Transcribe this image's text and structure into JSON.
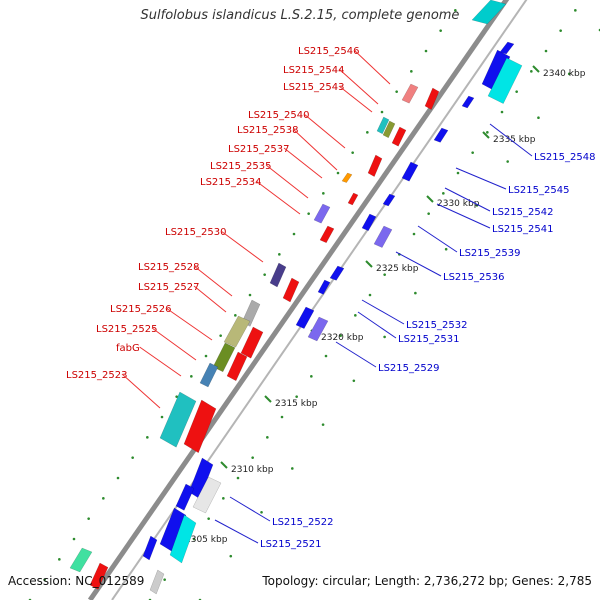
{
  "title": "Sulfolobus islandicus L.S.2.15, complete genome",
  "footer": {
    "accession": "Accession: NC_012589",
    "summary": "Topology: circular; Length: 2,736,272 bp; Genes: 2,785"
  },
  "colors": {
    "backbone": "#8c8c8c",
    "tick": "#2e8b2e",
    "forward_label": "#cc0000",
    "reverse_label": "#0000cc",
    "label_line_forward": "#ee3333",
    "label_line_reverse": "#2222cc"
  },
  "scale_labels": [
    "2340 kbp",
    "2335 kbp",
    "2330 kbp",
    "2325 kbp",
    "2320 kbp",
    "2315 kbp",
    "2310 kbp",
    "2305 kbp"
  ],
  "forward_labels": [
    "LS215_2546",
    "LS215_2544",
    "LS215_2543",
    "LS215_2540",
    "LS215_2538",
    "LS215_2537",
    "LS215_2535",
    "LS215_2534",
    "LS215_2530",
    "LS215_2528",
    "LS215_2527",
    "LS215_2526",
    "LS215_2525",
    "fabG",
    "LS215_2523"
  ],
  "reverse_labels": [
    "LS215_2548",
    "LS215_2545",
    "LS215_2542",
    "LS215_2541",
    "LS215_2539",
    "LS215_2536",
    "LS215_2532",
    "LS215_2531",
    "LS215_2529",
    "LS215_2522",
    "LS215_2521"
  ]
}
